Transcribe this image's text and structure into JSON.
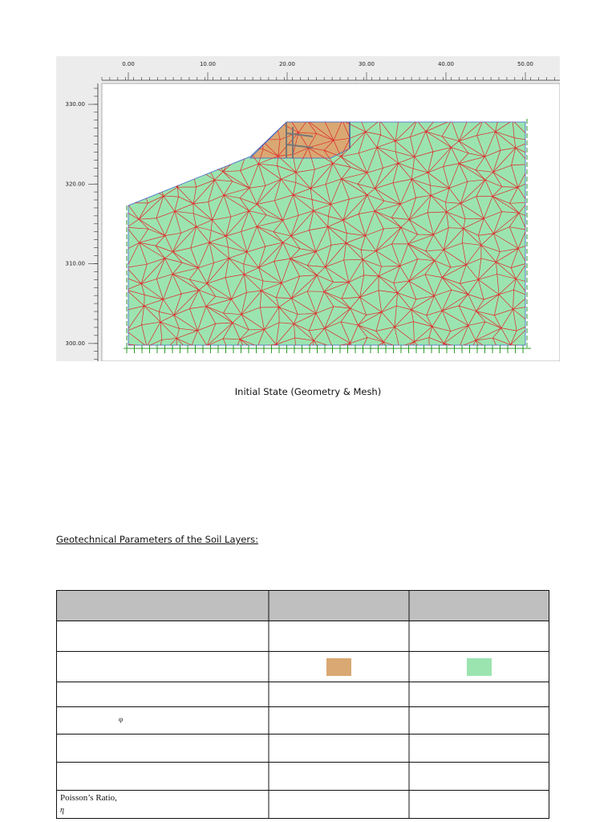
{
  "figure": {
    "x_labels": [
      "0.00",
      "10.00",
      "20.00",
      "30.00",
      "40.00",
      "50.00"
    ],
    "y_labels": [
      "330.00",
      "320.00",
      "310.00",
      "300.00"
    ],
    "caption": "Initial State (Geometry & Mesh)"
  },
  "heading": "Geotechnical Parameters of the Soil Layers:",
  "table": {
    "friction_angle_symbol": "φ",
    "poisson_label": "Poisson’s Ratio,",
    "poisson_symbol": "η"
  }
}
